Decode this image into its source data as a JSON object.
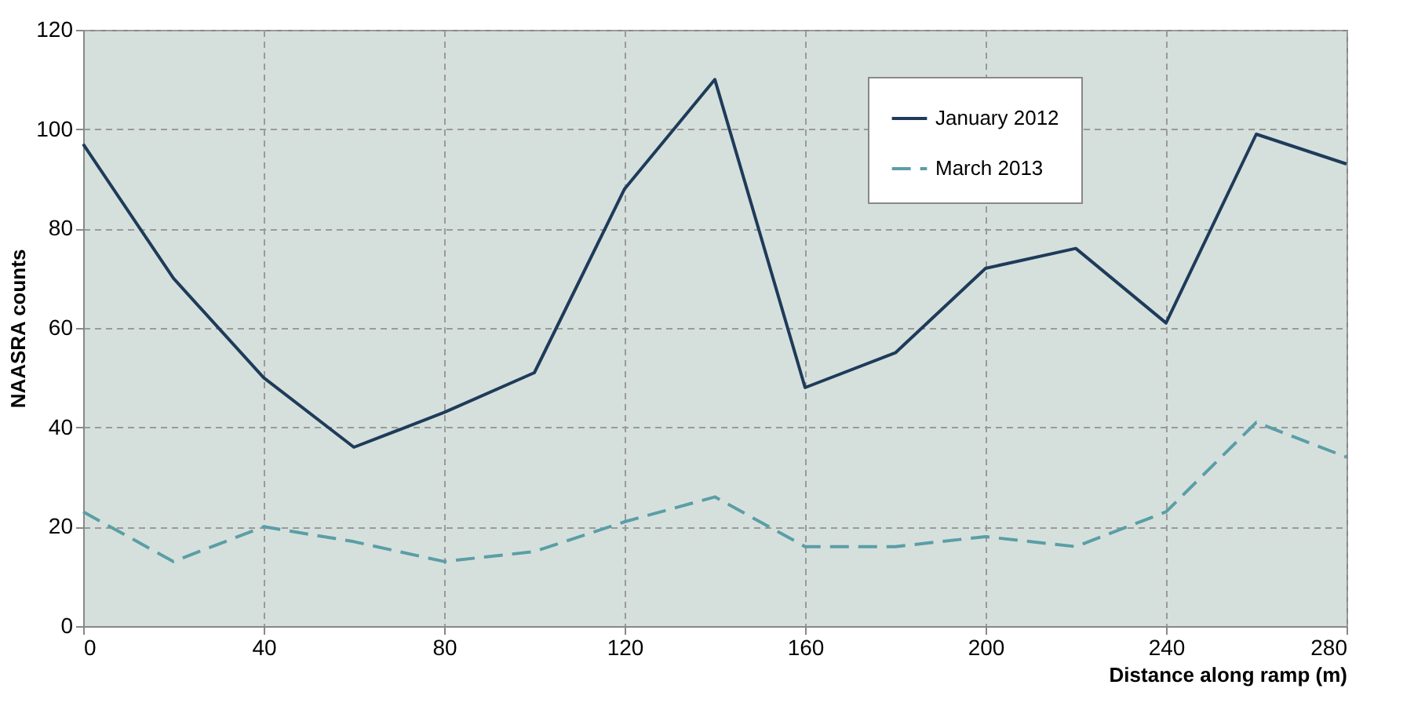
{
  "chart_data": {
    "type": "line",
    "xlabel": "Distance along ramp (m)",
    "ylabel": "NAASRA counts",
    "x": [
      0,
      20,
      40,
      60,
      80,
      100,
      120,
      140,
      160,
      180,
      200,
      220,
      240,
      260,
      280
    ],
    "series": [
      {
        "name": "January 2012",
        "color": "#1f3b5a",
        "line_style": "solid",
        "values": [
          97,
          70,
          50,
          36,
          43,
          51,
          88,
          110,
          48,
          55,
          72,
          76,
          61,
          99,
          93
        ]
      },
      {
        "name": "March 2013",
        "color": "#5b9ea6",
        "line_style": "dashed",
        "values": [
          23,
          13,
          20,
          17,
          13,
          15,
          21,
          26,
          16,
          16,
          18,
          16,
          23,
          41,
          34
        ]
      }
    ],
    "xlim": [
      0,
      280
    ],
    "xticks": [
      0,
      40,
      80,
      120,
      160,
      200,
      240,
      280
    ],
    "ylim": [
      0,
      120
    ],
    "yticks": [
      0,
      20,
      40,
      60,
      80,
      100,
      120
    ],
    "grid": true,
    "legend": "top right",
    "marker": "none"
  }
}
